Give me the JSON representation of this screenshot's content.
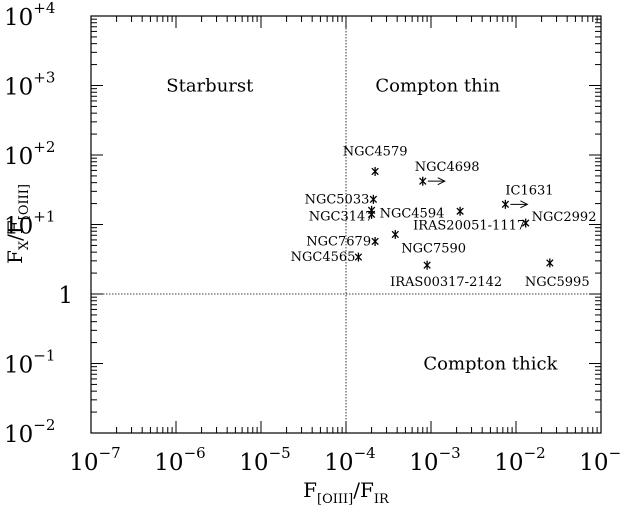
{
  "chart_data": {
    "type": "scatter",
    "title": "",
    "xscale": "log",
    "yscale": "log",
    "xlim": [
      1e-07,
      0.1
    ],
    "ylim": [
      0.01,
      10000
    ],
    "xlabel": {
      "main": "F",
      "sub1": "[OIII]",
      "sep": "/F",
      "sub2": "IR"
    },
    "ylabel": {
      "main": "F",
      "sub1": "X",
      "sep": "/F",
      "sub2": "[OIII]"
    },
    "xticks": [
      {
        "value": 1e-07,
        "base": "10",
        "exp": "−7"
      },
      {
        "value": 1e-06,
        "base": "10",
        "exp": "−6"
      },
      {
        "value": 1e-05,
        "base": "10",
        "exp": "−5"
      },
      {
        "value": 0.0001,
        "base": "10",
        "exp": "−4"
      },
      {
        "value": 0.001,
        "base": "10",
        "exp": "−3"
      },
      {
        "value": 0.01,
        "base": "10",
        "exp": "−2"
      },
      {
        "value": 0.1,
        "base": "10",
        "exp": "−1"
      }
    ],
    "yticks": [
      {
        "value": 10000,
        "base": "10",
        "exp": "+4"
      },
      {
        "value": 1000,
        "base": "10",
        "exp": "+3"
      },
      {
        "value": 100,
        "base": "10",
        "exp": "+2"
      },
      {
        "value": 10,
        "base": "10",
        "exp": "+1"
      },
      {
        "value": 1,
        "base": "1",
        "exp": ""
      },
      {
        "value": 0.1,
        "base": "10",
        "exp": "−1"
      },
      {
        "value": 0.01,
        "base": "10",
        "exp": "−2"
      }
    ],
    "reference_lines": {
      "x": 0.0001,
      "y": 1
    },
    "regions": [
      {
        "label": "Starburst",
        "x": 2.5e-06,
        "y": 1000
      },
      {
        "label": "Compton thin",
        "x": 0.0012,
        "y": 1000
      },
      {
        "label": "Compton thick",
        "x": 0.005,
        "y": 0.1
      }
    ],
    "points": [
      {
        "name": "NGC4579",
        "x": 0.00022,
        "y": 58,
        "arrow": false
      },
      {
        "name": "NGC4698",
        "x": 0.0008,
        "y": 42,
        "arrow": true
      },
      {
        "name": "NGC5033",
        "x": 0.00021,
        "y": 23,
        "arrow": false
      },
      {
        "name": "NGC4594",
        "x": 0.0002,
        "y": 16,
        "arrow": false
      },
      {
        "name": "NGC3147",
        "x": 0.0002,
        "y": 14,
        "arrow": false
      },
      {
        "name": "NGC7679",
        "x": 0.00022,
        "y": 5.7,
        "arrow": false
      },
      {
        "name": "NGC7590",
        "x": 0.00038,
        "y": 7.2,
        "arrow": false
      },
      {
        "name": "NGC4565",
        "x": 0.00014,
        "y": 3.4,
        "arrow": false
      },
      {
        "name": "IRAS00317-2142",
        "x": 0.0009,
        "y": 2.6,
        "arrow": false
      },
      {
        "name": "IRAS20051-1117",
        "x": 0.0022,
        "y": 15.5,
        "arrow": false
      },
      {
        "name": "IC1631",
        "x": 0.0075,
        "y": 19.5,
        "arrow": true
      },
      {
        "name": "NGC2992",
        "x": 0.013,
        "y": 10.5,
        "arrow": false
      },
      {
        "name": "NGC5995",
        "x": 0.025,
        "y": 2.8,
        "arrow": false
      }
    ]
  }
}
